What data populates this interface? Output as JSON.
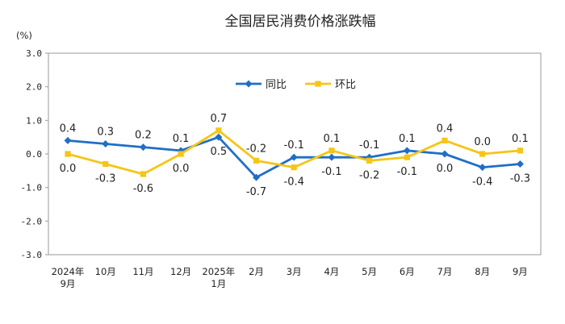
{
  "chart_data": {
    "type": "line",
    "title": "全国居民消费价格涨跌幅",
    "ylabel": "(%)",
    "ylim": [
      -3.0,
      3.0
    ],
    "yticks": [
      "3.0",
      "2.0",
      "1.0",
      "0.0",
      "-1.0",
      "-2.0",
      "-3.0"
    ],
    "categories": [
      [
        "2024年",
        "9月"
      ],
      [
        "10月"
      ],
      [
        "11月"
      ],
      [
        "12月"
      ],
      [
        "2025年",
        "1月"
      ],
      [
        "2月"
      ],
      [
        "3月"
      ],
      [
        "4月"
      ],
      [
        "5月"
      ],
      [
        "6月"
      ],
      [
        "7月"
      ],
      [
        "8月"
      ],
      [
        "9月"
      ]
    ],
    "legend_position": "top-center",
    "grid": false,
    "series": [
      {
        "name": "同比",
        "color": "#1f6fc5",
        "marker": "diamond",
        "values": [
          0.4,
          0.3,
          0.2,
          0.1,
          0.5,
          -0.7,
          -0.1,
          -0.1,
          -0.1,
          0.1,
          0.0,
          -0.4,
          -0.3
        ],
        "labels": [
          "0.4",
          "0.3",
          "0.2",
          "0.1",
          "0.5",
          "-0.7",
          "-0.1",
          "-0.1",
          "-0.1",
          "0.1",
          "0.0",
          "-0.4",
          "-0.3"
        ],
        "label_pos": [
          "above",
          "above",
          "above",
          "above",
          "below",
          "below",
          "above",
          "below",
          "above",
          "above",
          "below",
          "below",
          "below"
        ]
      },
      {
        "name": "环比",
        "color": "#f5c518",
        "marker": "square",
        "values": [
          0.0,
          -0.3,
          -0.6,
          0.0,
          0.7,
          -0.2,
          -0.4,
          0.1,
          -0.2,
          -0.1,
          0.4,
          0.0,
          0.1
        ],
        "labels": [
          "0.0",
          "-0.3",
          "-0.6",
          "0.0",
          "0.7",
          "-0.2",
          "-0.4",
          "0.1",
          "-0.2",
          "-0.1",
          "0.4",
          "0.0",
          "0.1"
        ],
        "label_pos": [
          "below",
          "below",
          "below",
          "below",
          "above",
          "above",
          "below",
          "above",
          "below",
          "below",
          "above",
          "above",
          "above"
        ]
      }
    ]
  }
}
